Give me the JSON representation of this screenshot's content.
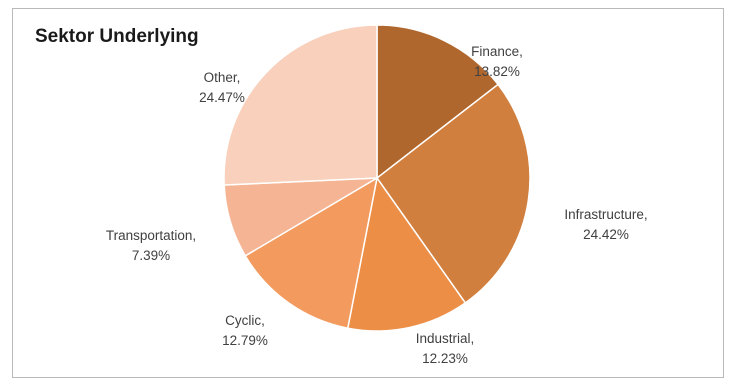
{
  "chart_data": {
    "type": "pie",
    "title": "Sektor Underlying",
    "slices": [
      {
        "label": "Finance",
        "value": 13.82,
        "display": "13.82%",
        "color": "#b0672e"
      },
      {
        "label": "Infrastructure",
        "value": 24.42,
        "display": "24.42%",
        "color": "#d17f3e"
      },
      {
        "label": "Industrial",
        "value": 12.23,
        "display": "12.23%",
        "color": "#ec8e46"
      },
      {
        "label": "Cyclic",
        "value": 12.79,
        "display": "12.79%",
        "color": "#f39a5e"
      },
      {
        "label": "Transportation",
        "value": 7.39,
        "display": "7.39%",
        "color": "#f5b594"
      },
      {
        "label": "Other",
        "value": 24.47,
        "display": "24.47%",
        "color": "#f8d0bb"
      }
    ],
    "start": "12 o'clock",
    "direction": "clockwise",
    "legend": "none",
    "label_style": "category, percentage"
  }
}
